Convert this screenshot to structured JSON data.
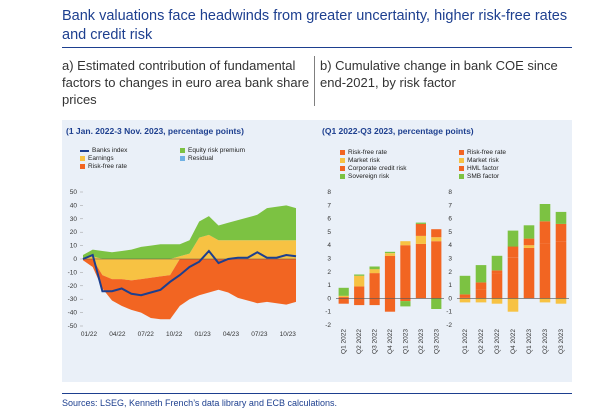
{
  "title": "Bank valuations face headwinds from greater uncertainty, higher risk-free rates and credit risk",
  "panel_a": {
    "heading": "a) Estimated contribution of fundamental factors to changes in euro area bank share prices",
    "subtitle": "(1 Jan. 2022-3 Nov. 2023, percentage points)"
  },
  "panel_b": {
    "heading": "b) Cumulative change in bank COE since end-2021, by risk factor",
    "subtitle": "(Q1 2022-Q3 2023, percentage points)"
  },
  "source": "Sources: LSEG, Kenneth French’s data library and ECB calculations.",
  "colors": {
    "banks_index": "#1d3f8f",
    "equity_risk_premium": "#7cc242",
    "earnings": "#f7c243",
    "residual": "#6fb1e4",
    "risk_free_rate": "#f26522",
    "market_risk": "#f7c243",
    "corporate_credit_risk": "#f26522",
    "sovereign_risk": "#7cc242",
    "hml_factor": "#f26522",
    "smb_factor": "#7cc242"
  },
  "chart_data": [
    {
      "type": "area",
      "ylim": [
        -50,
        50
      ],
      "yticks": [
        50,
        40,
        30,
        20,
        10,
        0,
        -10,
        -20,
        -30,
        -40,
        -50
      ],
      "xlabels": [
        "01/22",
        "04/22",
        "07/22",
        "10/22",
        "01/23",
        "04/23",
        "07/23",
        "10/23"
      ],
      "legend": [
        {
          "name": "Banks index",
          "key": "banks_index",
          "kind": "line"
        },
        {
          "name": "Equity risk premium",
          "key": "equity_risk_premium",
          "kind": "box"
        },
        {
          "name": "Earnings",
          "key": "earnings",
          "kind": "box"
        },
        {
          "name": "Residual",
          "key": "residual",
          "kind": "box"
        },
        {
          "name": "Risk-free rate",
          "key": "risk_free_rate",
          "kind": "box"
        }
      ],
      "month": [
        0,
        1,
        2,
        3,
        4,
        5,
        6,
        7,
        8,
        9,
        10,
        11,
        12,
        13,
        14,
        15,
        16,
        17,
        18,
        19,
        20,
        21,
        22
      ],
      "series": [
        {
          "name": "Equity risk premium",
          "key": "equity_risk_premium",
          "values": [
            3,
            5,
            6,
            5,
            6,
            7,
            9,
            10,
            11,
            11,
            9,
            10,
            12,
            14,
            11,
            13,
            15,
            17,
            19,
            24,
            25,
            26,
            24
          ]
        },
        {
          "name": "Earnings",
          "key": "earnings",
          "values": [
            0,
            2,
            -12,
            -15,
            -15,
            -16,
            -15,
            -14,
            -13,
            -12,
            2,
            4,
            16,
            18,
            14,
            14,
            14,
            14,
            14,
            14,
            14,
            14,
            14
          ]
        },
        {
          "name": "Risk-free rate",
          "key": "risk_free_rate",
          "values": [
            -1,
            -6,
            -10,
            -16,
            -20,
            -22,
            -25,
            -30,
            -32,
            -33,
            -35,
            -30,
            -27,
            -25,
            -23,
            -25,
            -29,
            -31,
            -33,
            -32,
            -33,
            -34,
            -32
          ]
        },
        {
          "name": "Banks index",
          "key": "banks_index",
          "values": [
            0,
            3,
            -24,
            -24,
            -22,
            -26,
            -27,
            -25,
            -23,
            -17,
            -12,
            -6,
            -2,
            6,
            -3,
            0,
            1,
            1,
            5,
            1,
            1,
            3,
            2
          ]
        }
      ]
    },
    {
      "type": "bar",
      "ylim": [
        -2,
        8
      ],
      "yticks": [
        8,
        7,
        6,
        5,
        4,
        3,
        2,
        1,
        0,
        -1,
        -2
      ],
      "categories": [
        "Q1 2022",
        "Q2 2022",
        "Q3 2022",
        "Q4 2022",
        "Q1 2023",
        "Q2 2023",
        "Q3 2023"
      ],
      "legend": [
        {
          "name": "Risk-free rate",
          "key": "risk_free_rate"
        },
        {
          "name": "Market risk",
          "key": "market_risk"
        },
        {
          "name": "Corporate credit risk",
          "key": "corporate_credit_risk"
        },
        {
          "name": "Sovereign risk",
          "key": "sovereign_risk"
        }
      ],
      "series": [
        {
          "name": "Risk-free rate",
          "key": "risk_free_rate",
          "values": [
            0.1,
            0.9,
            1.9,
            3.2,
            4.0,
            4.1,
            4.3
          ]
        },
        {
          "name": "Market risk",
          "key": "market_risk",
          "values": [
            0.1,
            0.8,
            0.3,
            0.2,
            0.3,
            0.6,
            0.3
          ]
        },
        {
          "name": "Corporate credit risk",
          "key": "corporate_credit_risk",
          "values": [
            -0.4,
            -0.5,
            -0.5,
            -1.0,
            -0.2,
            0.9,
            0.6
          ]
        },
        {
          "name": "Sovereign risk",
          "key": "sovereign_risk",
          "values": [
            0.6,
            0.1,
            0.2,
            0.1,
            -0.4,
            0.1,
            -0.8
          ]
        }
      ]
    },
    {
      "type": "bar",
      "ylim": [
        -2,
        8
      ],
      "yticks": [
        8,
        7,
        6,
        5,
        4,
        3,
        2,
        1,
        0,
        -1,
        -2
      ],
      "categories": [
        "Q1 2022",
        "Q2 2022",
        "Q3 2022",
        "Q4 2022",
        "Q1 2023",
        "Q2 2023",
        "Q3 2023"
      ],
      "legend": [
        {
          "name": "Risk-free rate",
          "key": "risk_free_rate"
        },
        {
          "name": "Market risk",
          "key": "market_risk"
        },
        {
          "name": "HML factor",
          "key": "hml_factor"
        },
        {
          "name": "SMB factor",
          "key": "smb_factor"
        }
      ],
      "series": [
        {
          "name": "Risk-free rate",
          "key": "risk_free_rate",
          "values": [
            0.1,
            0.7,
            1.9,
            3.1,
            3.8,
            4.1,
            4.3
          ]
        },
        {
          "name": "Market risk",
          "key": "market_risk",
          "values": [
            -0.3,
            -0.3,
            -0.4,
            -1.0,
            0.2,
            -0.3,
            -0.4
          ]
        },
        {
          "name": "HML factor",
          "key": "hml_factor",
          "values": [
            0.2,
            0.5,
            0.2,
            0.8,
            0.5,
            1.7,
            1.3
          ]
        },
        {
          "name": "SMB factor",
          "key": "smb_factor",
          "values": [
            1.4,
            1.3,
            1.1,
            1.2,
            1.0,
            1.3,
            0.9
          ]
        }
      ]
    }
  ]
}
